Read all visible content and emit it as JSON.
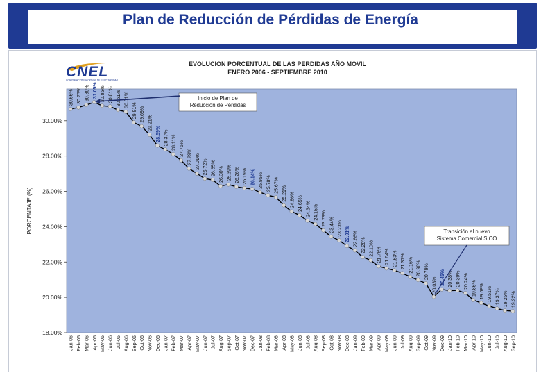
{
  "slide": {
    "title": "Plan de Reducción de Pérdidas de Energía"
  },
  "logo": {
    "text": "CNEL",
    "tagline": "CORPORACION NACIONAL DE ELECTRICIDAD"
  },
  "colors": {
    "banner": "#1f3a93",
    "plot_bg": "#9fb3de",
    "line": "#000000",
    "marker": "#d7d7d7",
    "highlight_label": "#1f3a93"
  },
  "chart_data": {
    "type": "line",
    "title": "EVOLUCION PORCENTUAL DE LAS PERDIDAS AÑO MOVIL",
    "subtitle": "ENERO 2006 - SEPTIEMBRE 2010",
    "xlabel": "",
    "ylabel": "PORCENTAJE (%)",
    "ylim": [
      18,
      31.8
    ],
    "yticks": [
      "18.00%",
      "20.00%",
      "22.00%",
      "24.00%",
      "26.00%",
      "28.00%",
      "30.00%"
    ],
    "ytick_values": [
      18,
      20,
      22,
      24,
      26,
      28,
      30
    ],
    "grid": false,
    "categories": [
      "Jan-06",
      "Feb-06",
      "Mar-06",
      "Apr-06",
      "May-06",
      "Jun-06",
      "Jul-06",
      "Aug-06",
      "Sep-06",
      "Oct-06",
      "Nov-06",
      "Dec-06",
      "Jan-07",
      "Feb-07",
      "Mar-07",
      "Apr-07",
      "May-07",
      "Jun-07",
      "Jul-07",
      "Aug-07",
      "Sep-07",
      "Oct-07",
      "Nov-07",
      "Dec-07",
      "Jan-08",
      "Feb-08",
      "Mar-08",
      "Apr-08",
      "May-08",
      "Jun-08",
      "Jul-08",
      "Aug-08",
      "Sep-08",
      "Oct-08",
      "Nov-08",
      "Dec-08",
      "Jan-09",
      "Feb-09",
      "Mar-09",
      "Apr-09",
      "May-09",
      "Jun-09",
      "Jul-09",
      "Aug-09",
      "Sep-09",
      "Oct-09",
      "Nov-09",
      "Dec-09",
      "Jan-10",
      "Feb-10",
      "Mar-10",
      "Apr-10",
      "May-10",
      "Jun-10",
      "Jul-10",
      "Aug-10",
      "Sep-10"
    ],
    "values": [
      30.66,
      30.75,
      30.89,
      31.05,
      30.85,
      30.81,
      30.61,
      30.51,
      29.91,
      29.69,
      29.21,
      28.59,
      28.37,
      28.11,
      27.76,
      27.29,
      27.01,
      26.72,
      26.65,
      26.3,
      26.39,
      26.26,
      26.19,
      26.14,
      25.95,
      25.78,
      25.67,
      25.21,
      24.86,
      24.65,
      24.34,
      24.15,
      23.79,
      23.44,
      23.23,
      22.91,
      22.66,
      22.28,
      22.1,
      21.76,
      21.64,
      21.53,
      21.37,
      21.16,
      20.98,
      20.79,
      20.03,
      20.45,
      20.38,
      20.39,
      20.24,
      19.85,
      19.68,
      19.51,
      19.37,
      19.25,
      19.22
    ],
    "value_labels": [
      "30.66%",
      "30.75%",
      "30.89%",
      "31.05%",
      "30.85%",
      "30.81%",
      "30.61%",
      "30.51%",
      "29.91%",
      "29.69%",
      "29.21%",
      "28.59%",
      "28.37%",
      "28.11%",
      "27.76%",
      "27.29%",
      "27.01%",
      "26.72%",
      "26.65%",
      "26.30%",
      "26.39%",
      "26.26%",
      "26.19%",
      "26.14%",
      "25.95%",
      "25.78%",
      "25.67%",
      "25.21%",
      "24.86%",
      "24.65%",
      "24.34%",
      "24.15%",
      "23.79%",
      "23.44%",
      "23.23%",
      "22.91%",
      "22.66%",
      "22.28%",
      "22.10%",
      "21.76%",
      "21.64%",
      "21.53%",
      "21.37%",
      "21.16%",
      "20.98%",
      "20.79%",
      "20.03%",
      "20.45%",
      "20.38%",
      "20.39%",
      "20.24%",
      "19.85%",
      "19.68%",
      "19.51%",
      "19.37%",
      "19.25%",
      "19.22%"
    ],
    "highlight_indices": [
      3,
      11,
      23,
      35,
      47
    ],
    "annotations": [
      {
        "text": [
          "Inicio de Plan de",
          "Reducción de Pérdidas"
        ],
        "target_index": 3
      },
      {
        "text": [
          "Transición al nuevo",
          "Sistema Comercial SICO"
        ],
        "target_index": 46
      }
    ]
  }
}
